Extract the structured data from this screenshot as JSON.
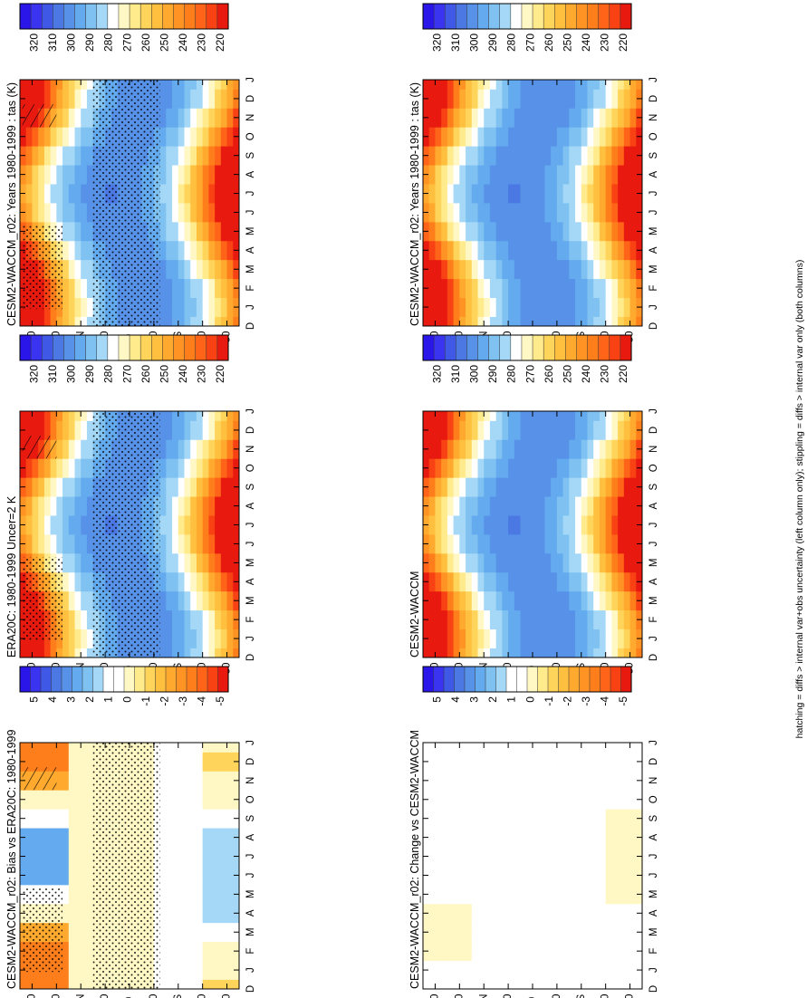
{
  "figure": {
    "footnote": "hatching = diffs > internal var+obs uncertainty (left column only); stippling = diffs > internal var only (both columns)"
  },
  "colors": {
    "abs_scale": [
      "#2a16e8",
      "#3a34f0",
      "#3f58e6",
      "#4b78e3",
      "#5792e8",
      "#64aaee",
      "#7fc2f2",
      "#a4d8f6",
      "#ffffff",
      "#fff7c4",
      "#ffea8c",
      "#ffd45a",
      "#ffc040",
      "#ffaa2e",
      "#ff9424",
      "#ff7e1c",
      "#ff6418",
      "#f84214",
      "#e81a10"
    ],
    "diff_scale": [
      "#2a16e8",
      "#3a34f0",
      "#3f58e6",
      "#4b78e3",
      "#5792e8",
      "#64aaee",
      "#7fc2f2",
      "#a4d8f6",
      "#ffffff",
      "#ffffff",
      "#fff7c4",
      "#ffea8c",
      "#ffd45a",
      "#ffc040",
      "#ffaa2e",
      "#ff9424",
      "#ff7e1c",
      "#ff6418",
      "#f84214",
      "#e81a10"
    ]
  },
  "chart_data": [
    {
      "type": "heatmap",
      "panel": "left-top",
      "title": "CESM2-WACCM_r02: Years 1980-1999 : tas (K)",
      "variable": "tas",
      "units": "K",
      "x_ticks": [
        "D",
        "J",
        "F",
        "M",
        "A",
        "M",
        "J",
        "J",
        "A",
        "S",
        "O",
        "N",
        "D",
        "J"
      ],
      "y_ticks": [
        "80",
        "60",
        "°N",
        "20",
        "0",
        "20",
        "°S",
        "60",
        "80"
      ],
      "ylim": [
        -90,
        90
      ],
      "colorbar_labels": [
        "320",
        "310",
        "300",
        "290",
        "280",
        "270",
        "260",
        "250",
        "240",
        "230",
        "220"
      ],
      "grid": false,
      "stippling": true,
      "hatching": true
    },
    {
      "type": "heatmap",
      "panel": "right-top",
      "title": "CESM2-WACCM_r02: Years 1980-1999 : tas (K)",
      "variable": "tas",
      "units": "K",
      "x_ticks": [
        "D",
        "J",
        "F",
        "M",
        "A",
        "M",
        "J",
        "J",
        "A",
        "S",
        "O",
        "N",
        "D",
        "J"
      ],
      "y_ticks": [
        "80",
        "60",
        "°N",
        "20",
        "0",
        "20",
        "°S",
        "60",
        "80"
      ],
      "ylim": [
        -90,
        90
      ],
      "colorbar_labels": [
        "320",
        "310",
        "300",
        "290",
        "280",
        "270",
        "260",
        "250",
        "240",
        "230",
        "220"
      ],
      "grid": false,
      "stippling": false,
      "hatching": false
    },
    {
      "type": "heatmap",
      "panel": "left-middle",
      "title": "ERA20C: 1980-1999 Uncer=2 K",
      "variable": "tas",
      "units": "K",
      "x_ticks": [
        "D",
        "J",
        "F",
        "M",
        "A",
        "M",
        "J",
        "J",
        "A",
        "S",
        "O",
        "N",
        "D",
        "J"
      ],
      "y_ticks": [
        "80",
        "60",
        "°N",
        "20",
        "0",
        "20",
        "°S",
        "60",
        "80"
      ],
      "ylim": [
        -90,
        90
      ],
      "colorbar_labels": [
        "320",
        "310",
        "300",
        "290",
        "280",
        "270",
        "260",
        "250",
        "240",
        "230",
        "220"
      ],
      "grid": false,
      "stippling": true,
      "hatching": true
    },
    {
      "type": "heatmap",
      "panel": "right-middle",
      "title": "CESM2-WACCM",
      "variable": "tas",
      "units": "K",
      "x_ticks": [
        "D",
        "J",
        "F",
        "M",
        "A",
        "M",
        "J",
        "J",
        "A",
        "S",
        "O",
        "N",
        "D",
        "J"
      ],
      "y_ticks": [
        "80",
        "60",
        "°N",
        "20",
        "0",
        "20",
        "°S",
        "60",
        "80"
      ],
      "ylim": [
        -90,
        90
      ],
      "colorbar_labels": [
        "320",
        "310",
        "300",
        "290",
        "280",
        "270",
        "260",
        "250",
        "240",
        "230",
        "220"
      ],
      "grid": false,
      "stippling": false,
      "hatching": false
    },
    {
      "type": "heatmap",
      "panel": "left-bottom",
      "title": "CESM2-WACCM_r02: Bias vs ERA20C: 1980-1999",
      "variable": "tas difference",
      "units": "K",
      "x_ticks": [
        "D",
        "J",
        "F",
        "M",
        "A",
        "M",
        "J",
        "J",
        "A",
        "S",
        "O",
        "N",
        "D",
        "J"
      ],
      "y_ticks": [
        "80",
        "60",
        "°N",
        "20",
        "0",
        "20",
        "°S",
        "60",
        "80"
      ],
      "ylim": [
        -90,
        90
      ],
      "colorbar_labels": [
        "5",
        "4",
        "3",
        "2",
        "1",
        "0",
        "-1",
        "-2",
        "-3",
        "-4",
        "-5"
      ],
      "grid": false,
      "stippling": true,
      "hatching": true
    },
    {
      "type": "heatmap",
      "panel": "right-bottom",
      "title": "CESM2-WACCM_r02: Change vs CESM2-WACCM",
      "variable": "tas difference",
      "units": "K",
      "x_ticks": [
        "D",
        "J",
        "F",
        "M",
        "A",
        "M",
        "J",
        "J",
        "A",
        "S",
        "O",
        "N",
        "D",
        "J"
      ],
      "y_ticks": [
        "80",
        "60",
        "°N",
        "20",
        "0",
        "20",
        "°S",
        "60",
        "80"
      ],
      "ylim": [
        -90,
        90
      ],
      "colorbar_labels": [
        "5",
        "4",
        "3",
        "2",
        "1",
        "0",
        "-1",
        "-2",
        "-3",
        "-4",
        "-5"
      ],
      "grid": false,
      "stippling": false,
      "hatching": false
    }
  ]
}
